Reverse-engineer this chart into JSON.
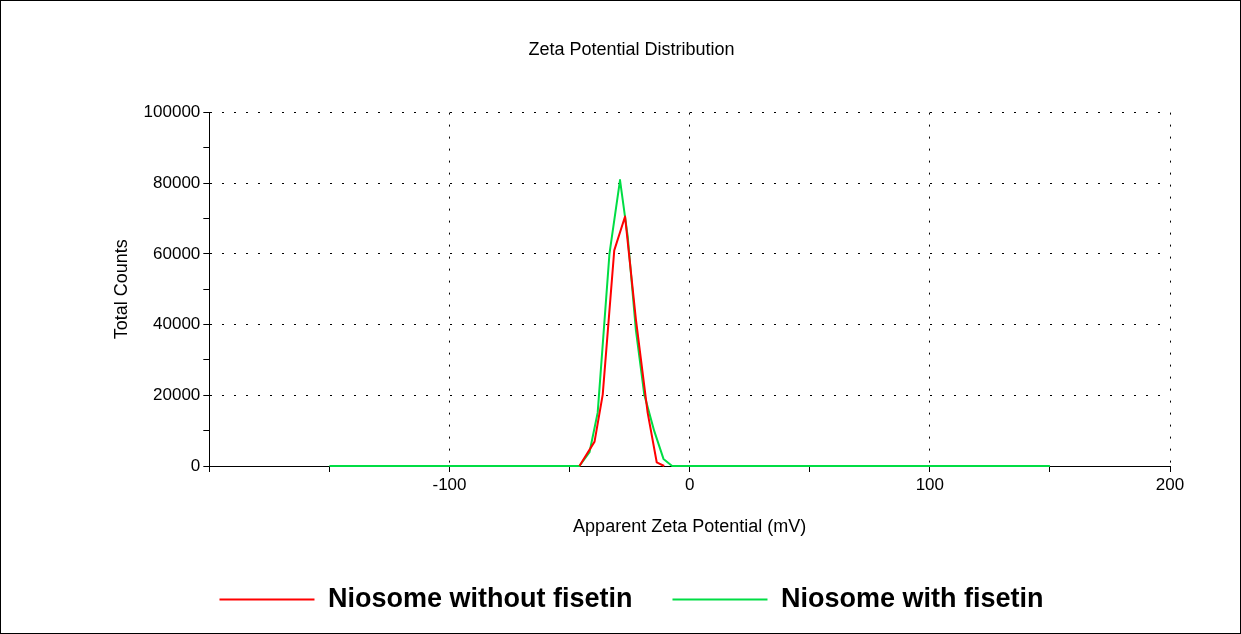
{
  "chart_data": {
    "type": "line",
    "title": "Zeta Potential Distribution",
    "xlabel": "Apparent Zeta Potential (mV)",
    "ylabel": "Total Counts",
    "xlim": [
      -200,
      200
    ],
    "xticks": [
      {
        "value": -200,
        "label": null
      },
      {
        "value": -150,
        "label": null
      },
      -100,
      {
        "value": -50,
        "label": null
      },
      0,
      {
        "value": 50,
        "label": null
      },
      100,
      {
        "value": 150,
        "label": null
      },
      200
    ],
    "ylim": [
      0,
      100000
    ],
    "yticks": [
      0,
      {
        "value": 10000,
        "label": null
      },
      20000,
      {
        "value": 30000,
        "label": null
      },
      40000,
      {
        "value": 50000,
        "label": null
      },
      60000,
      {
        "value": 70000,
        "label": null
      },
      80000,
      {
        "value": 90000,
        "label": null
      },
      100000
    ],
    "grid": true,
    "legend": "bottom",
    "marker": "none",
    "line_style": "solid",
    "series": [
      {
        "name": "Niosome without fisetin",
        "color": "#ff0000",
        "x": [
          -45.9,
          -39.6,
          -36.2,
          -31.4,
          -26.9,
          -22.4,
          -17.5,
          -13.7,
          -10.6
        ],
        "values": [
          0,
          6900,
          20200,
          61000,
          70600,
          41600,
          15100,
          1000,
          0
        ]
      },
      {
        "name": "Niosome with fisetin",
        "color": "#00dd44",
        "x": [
          -150,
          -45.9,
          -41.7,
          -38.3,
          -33.4,
          -29.0,
          -25.8,
          -22.4,
          -18.9,
          -14.8,
          -10.9,
          -7.3,
          150
        ],
        "values": [
          0,
          0,
          3900,
          15100,
          60000,
          80900,
          65000,
          38500,
          20200,
          10000,
          2000,
          0,
          0
        ]
      }
    ]
  }
}
